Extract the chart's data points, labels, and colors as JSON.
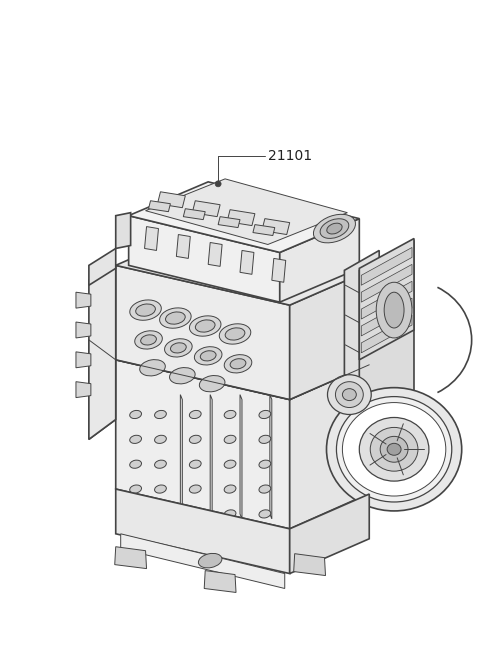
{
  "title": "",
  "background_color": "#ffffff",
  "part_number": "21101",
  "line_color": "#444444",
  "figsize": [
    4.8,
    6.55
  ],
  "dpi": 100
}
